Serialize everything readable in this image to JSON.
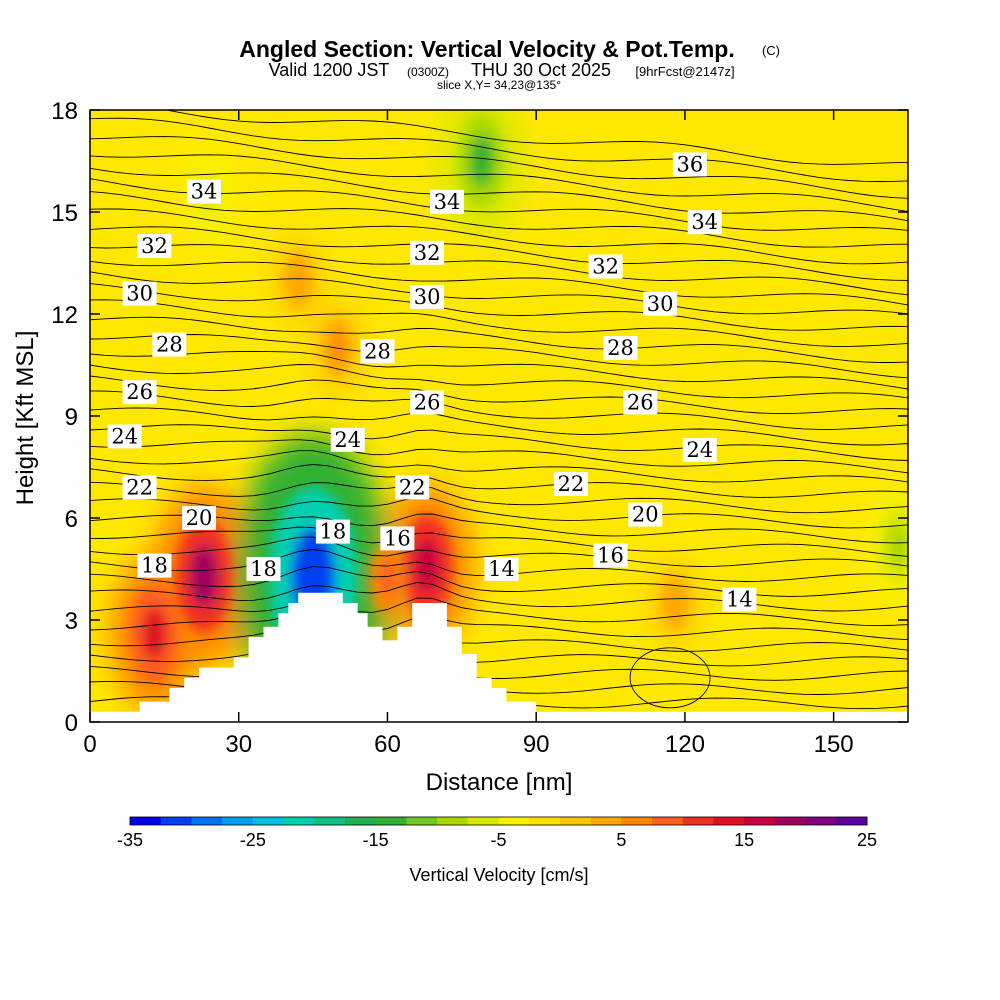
{
  "header": {
    "title": "Angled Section: Vertical Velocity & Pot.Temp.",
    "copyright_mark": "(C)",
    "valid_prefix": "Valid 1200 JST",
    "utc_time": "(0300Z)",
    "valid_date": "THU 30 Oct 2025",
    "forecast_info": "[9hrFcst@2147z]",
    "slice_info": "slice X,Y= 34,23@135°"
  },
  "colorbar": {
    "label": "Vertical Velocity [cm/s]",
    "min": -35,
    "max": 25,
    "step": 2.5,
    "tick_labels": [
      "-35",
      "-25",
      "-15",
      "-5",
      "5",
      "15",
      "25"
    ],
    "colors": [
      "#0000ee",
      "#0040f0",
      "#0070f0",
      "#00a0f0",
      "#00c0e0",
      "#00d0b0",
      "#10c080",
      "#20b050",
      "#30b030",
      "#70c820",
      "#a8d800",
      "#d8e800",
      "#f8f000",
      "#ffe000",
      "#ffc800",
      "#ffa800",
      "#ff8800",
      "#ff6020",
      "#f03020",
      "#e01020",
      "#c80040",
      "#a00060",
      "#800080",
      "#6000a0"
    ]
  },
  "chart_data": {
    "type": "heatmap",
    "title": "Angled Section: Vertical Velocity & Pot.Temp.",
    "xlabel": "Distance [nm]",
    "ylabel": "Height [Kft MSL]",
    "xlim": [
      0,
      165
    ],
    "ylim": [
      0,
      18
    ],
    "xticks": [
      0,
      30,
      60,
      90,
      120,
      150
    ],
    "yticks": [
      0,
      3,
      6,
      9,
      12,
      15,
      18
    ],
    "fill_variable": "Vertical Velocity [cm/s]",
    "contour_variable": "Potential Temperature",
    "terrain": [
      [
        0,
        0.3
      ],
      [
        10,
        0.3
      ],
      [
        10,
        0.6
      ],
      [
        16,
        0.6
      ],
      [
        16,
        1.0
      ],
      [
        19,
        1.0
      ],
      [
        19,
        1.3
      ],
      [
        22,
        1.3
      ],
      [
        22,
        1.6
      ],
      [
        29,
        1.6
      ],
      [
        29,
        1.9
      ],
      [
        32,
        1.9
      ],
      [
        32,
        2.5
      ],
      [
        35,
        2.5
      ],
      [
        35,
        2.8
      ],
      [
        38,
        2.8
      ],
      [
        38,
        3.2
      ],
      [
        40,
        3.2
      ],
      [
        40,
        3.5
      ],
      [
        42,
        3.5
      ],
      [
        42,
        3.8
      ],
      [
        51,
        3.8
      ],
      [
        51,
        3.5
      ],
      [
        54,
        3.5
      ],
      [
        54,
        3.2
      ],
      [
        56,
        3.2
      ],
      [
        56,
        2.8
      ],
      [
        59,
        2.8
      ],
      [
        59,
        2.4
      ],
      [
        62,
        2.4
      ],
      [
        62,
        2.8
      ],
      [
        65,
        2.8
      ],
      [
        65,
        3.5
      ],
      [
        72,
        3.5
      ],
      [
        72,
        2.8
      ],
      [
        75,
        2.8
      ],
      [
        75,
        2.0
      ],
      [
        78,
        2.0
      ],
      [
        78,
        1.3
      ],
      [
        81,
        1.3
      ],
      [
        81,
        1.0
      ],
      [
        84,
        1.0
      ],
      [
        84,
        0.6
      ],
      [
        90,
        0.6
      ],
      [
        90,
        0.3
      ],
      [
        165,
        0.3
      ]
    ],
    "updraft_cores": [
      {
        "x": 23,
        "y": 4.3,
        "value": 17.5
      },
      {
        "x": 13,
        "y": 2.6,
        "value": 14
      },
      {
        "x": 68,
        "y": 4.6,
        "value": 15
      },
      {
        "x": 60,
        "y": 4.2,
        "value": 8
      },
      {
        "x": 50,
        "y": 11.0,
        "value": 5
      },
      {
        "x": 42,
        "y": 13.0,
        "value": 4
      },
      {
        "x": 118,
        "y": 3.5,
        "value": 4
      }
    ],
    "downdraft_cores": [
      {
        "x": 45,
        "y": 4.3,
        "value": -32
      },
      {
        "x": 79,
        "y": 16.5,
        "value": -13
      },
      {
        "x": 163,
        "y": 5.2,
        "value": -9
      },
      {
        "x": 24,
        "y": 15.5,
        "value": -7
      }
    ],
    "contour_labels": [
      {
        "text": "36",
        "x": 121,
        "y": 16.4
      },
      {
        "text": "34",
        "x": 23,
        "y": 15.6
      },
      {
        "text": "34",
        "x": 72,
        "y": 15.3
      },
      {
        "text": "34",
        "x": 124,
        "y": 14.7
      },
      {
        "text": "32",
        "x": 13,
        "y": 14.0
      },
      {
        "text": "32",
        "x": 68,
        "y": 13.8
      },
      {
        "text": "32",
        "x": 104,
        "y": 13.4
      },
      {
        "text": "30",
        "x": 10,
        "y": 12.6
      },
      {
        "text": "30",
        "x": 68,
        "y": 12.5
      },
      {
        "text": "30",
        "x": 115,
        "y": 12.3
      },
      {
        "text": "28",
        "x": 16,
        "y": 11.1
      },
      {
        "text": "28",
        "x": 58,
        "y": 10.9
      },
      {
        "text": "28",
        "x": 107,
        "y": 11.0
      },
      {
        "text": "26",
        "x": 10,
        "y": 9.7
      },
      {
        "text": "26",
        "x": 68,
        "y": 9.4
      },
      {
        "text": "26",
        "x": 111,
        "y": 9.4
      },
      {
        "text": "24",
        "x": 7,
        "y": 8.4
      },
      {
        "text": "24",
        "x": 52,
        "y": 8.3
      },
      {
        "text": "24",
        "x": 123,
        "y": 8.0
      },
      {
        "text": "22",
        "x": 10,
        "y": 6.9
      },
      {
        "text": "22",
        "x": 65,
        "y": 6.9
      },
      {
        "text": "22",
        "x": 97,
        "y": 7.0
      },
      {
        "text": "20",
        "x": 22,
        "y": 6.0
      },
      {
        "text": "20",
        "x": 112,
        "y": 6.1
      },
      {
        "text": "18",
        "x": 13,
        "y": 4.6
      },
      {
        "text": "18",
        "x": 35,
        "y": 4.5
      },
      {
        "text": "18",
        "x": 49,
        "y": 5.6
      },
      {
        "text": "16",
        "x": 62,
        "y": 5.4
      },
      {
        "text": "16",
        "x": 105,
        "y": 4.9
      },
      {
        "text": "14",
        "x": 83,
        "y": 4.5
      },
      {
        "text": "14",
        "x": 131,
        "y": 3.6
      }
    ]
  }
}
